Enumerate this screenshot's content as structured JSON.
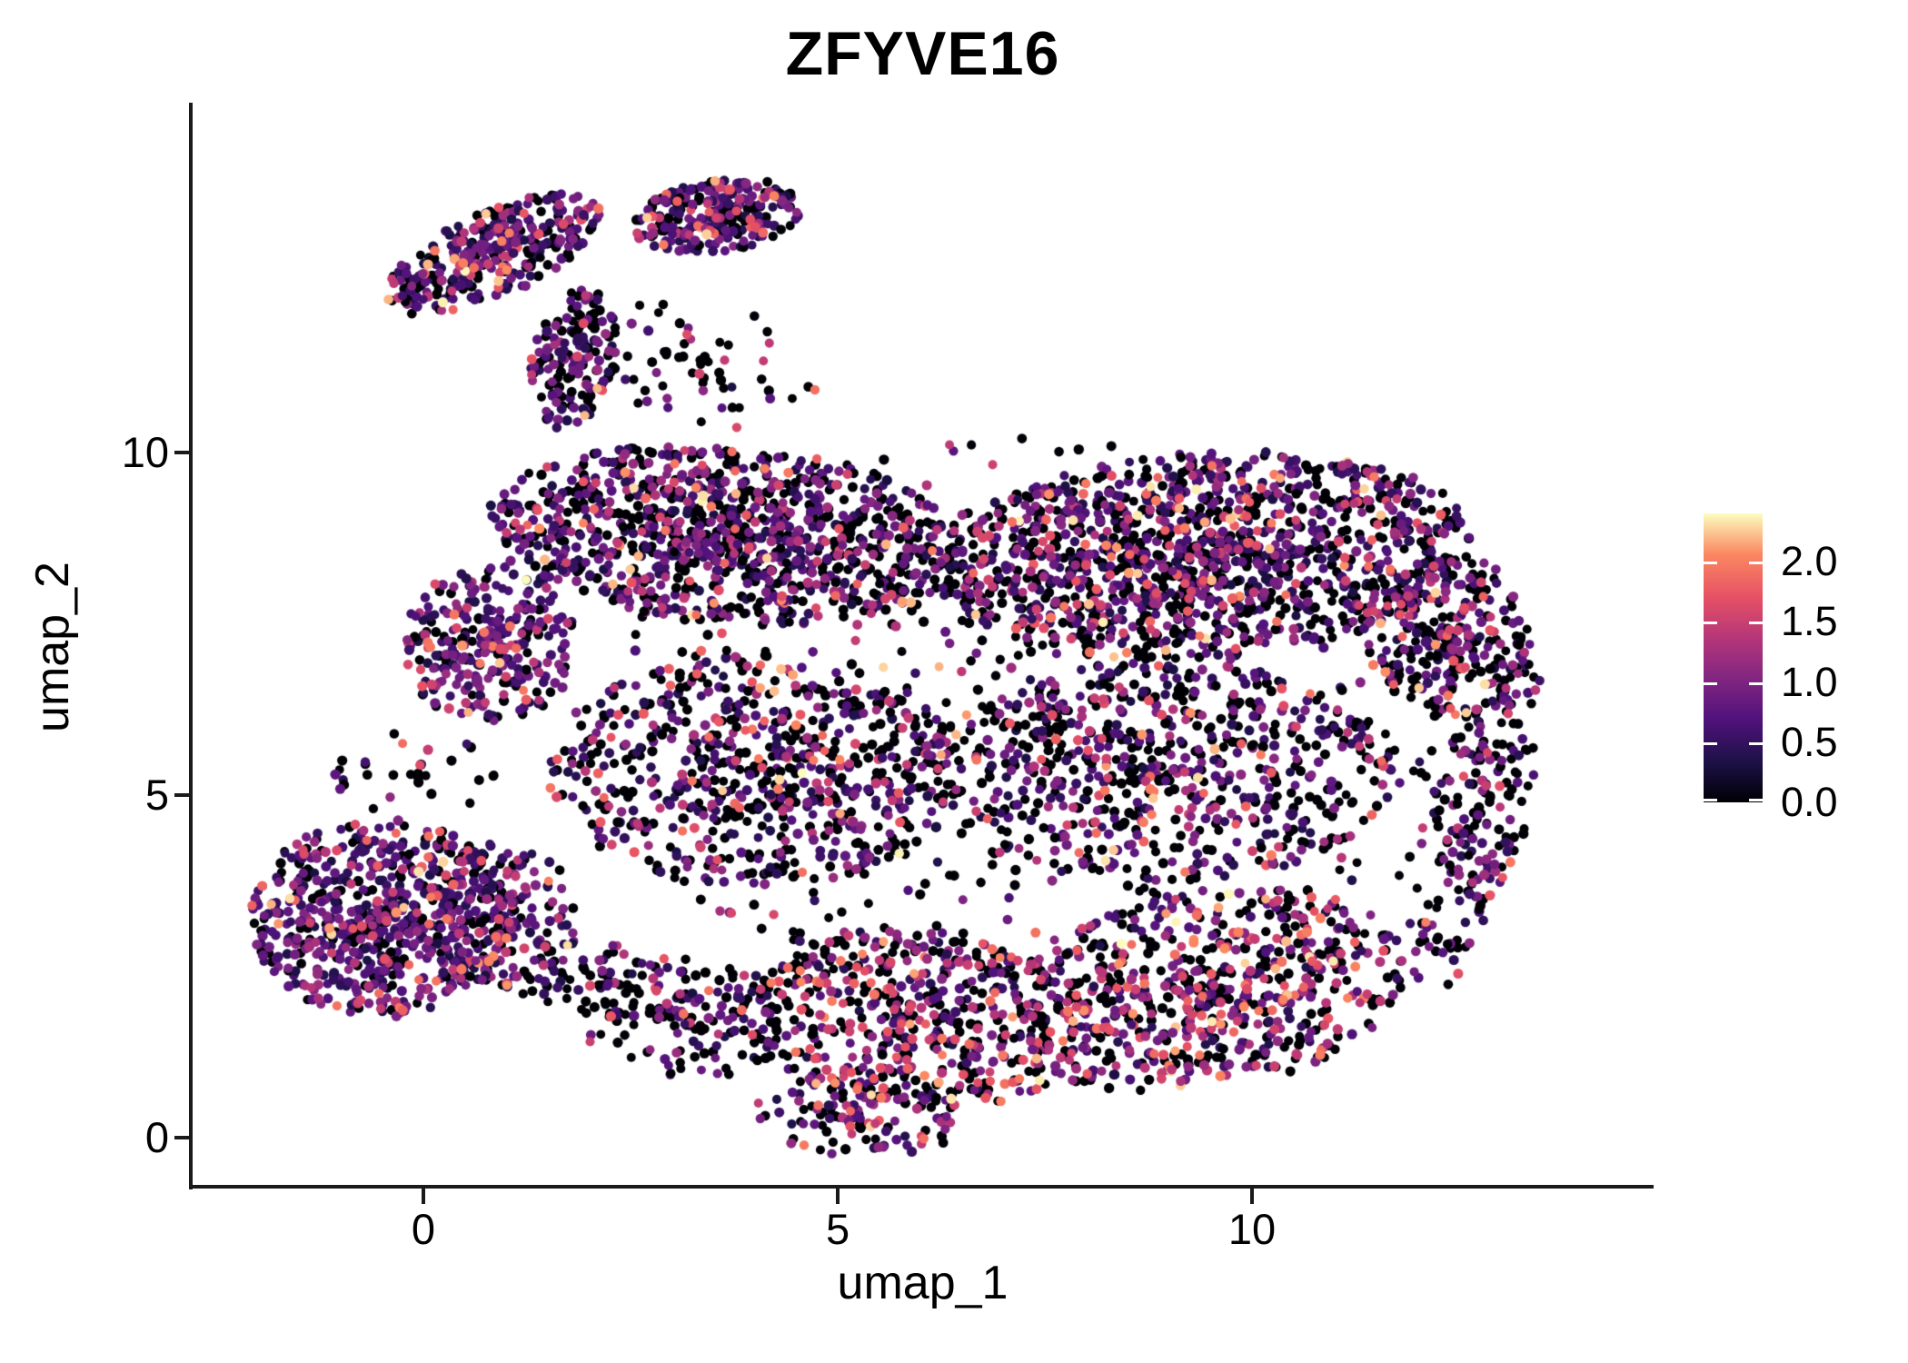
{
  "title": "ZFYVE16",
  "chart_data": {
    "type": "scatter",
    "title": "ZFYVE16",
    "xlabel": "umap_1",
    "ylabel": "umap_2",
    "xlim": [
      -2.785,
      14.835
    ],
    "ylim": [
      -0.703,
      15.08
    ],
    "x_ticks": [
      {
        "value": 0,
        "label": "0"
      },
      {
        "value": 5,
        "label": "5"
      },
      {
        "value": 10,
        "label": "10"
      }
    ],
    "y_ticks": [
      {
        "value": 0,
        "label": "0"
      },
      {
        "value": 5,
        "label": "5"
      },
      {
        "value": 10,
        "label": "10"
      }
    ],
    "grid": false,
    "legend_position": "right",
    "colormap_name": "magma",
    "colormap_stops": [
      [
        0.0,
        "#000004"
      ],
      [
        0.14,
        "#1d1147"
      ],
      [
        0.29,
        "#51127c"
      ],
      [
        0.43,
        "#822681"
      ],
      [
        0.57,
        "#b63679"
      ],
      [
        0.71,
        "#e65164"
      ],
      [
        0.86,
        "#fb8861"
      ],
      [
        1.0,
        "#fcfdbf"
      ]
    ],
    "color_domain": [
      0,
      2.4
    ],
    "legend_ticks": [
      {
        "value": 2.0,
        "label": "2.0"
      },
      {
        "value": 1.5,
        "label": "1.5"
      },
      {
        "value": 1.0,
        "label": "1.0"
      },
      {
        "value": 0.5,
        "label": "0.5"
      },
      {
        "value": 0.0,
        "label": "0.0"
      }
    ],
    "point_radius_px": 5.2,
    "seed": 42,
    "expression_bins": [
      [
        0.0,
        0.02
      ],
      [
        0.3,
        0.7
      ],
      [
        0.7,
        1.1
      ],
      [
        1.1,
        1.6
      ],
      [
        1.6,
        2.0
      ],
      [
        2.0,
        2.4
      ]
    ],
    "expression_mixes": {
      "default": [
        0.44,
        0.22,
        0.17,
        0.1,
        0.05,
        0.02
      ],
      "upper": [
        0.4,
        0.25,
        0.19,
        0.1,
        0.04,
        0.02
      ],
      "arm": [
        0.3,
        0.3,
        0.22,
        0.12,
        0.04,
        0.02
      ],
      "armdark": [
        0.42,
        0.26,
        0.18,
        0.09,
        0.04,
        0.01
      ],
      "blc": [
        0.22,
        0.33,
        0.26,
        0.12,
        0.05,
        0.02
      ],
      "lobe": [
        0.2,
        0.32,
        0.28,
        0.14,
        0.04,
        0.02
      ],
      "bottom": [
        0.38,
        0.14,
        0.16,
        0.18,
        0.1,
        0.04
      ],
      "sparse": [
        0.6,
        0.18,
        0.12,
        0.06,
        0.03,
        0.01
      ],
      "dark": [
        0.52,
        0.18,
        0.14,
        0.09,
        0.05,
        0.02
      ],
      "botdark": [
        0.5,
        0.15,
        0.13,
        0.12,
        0.07,
        0.03
      ]
    },
    "clusters": [
      {
        "name": "arm-a",
        "center": [
          0.85,
          12.9
        ],
        "spread": [
          1.45,
          0.6
        ],
        "rot": 30,
        "n": 330,
        "mix": "arm"
      },
      {
        "name": "arm-b",
        "center": [
          3.55,
          13.45
        ],
        "spread": [
          1.05,
          0.52
        ],
        "rot": 10,
        "n": 250,
        "mix": "arm"
      },
      {
        "name": "arm-hook",
        "center": [
          1.8,
          11.35
        ],
        "spread": [
          0.5,
          1.05
        ],
        "rot": -10,
        "n": 150,
        "mix": "armdark"
      },
      {
        "name": "arm-tail",
        "center": [
          3.4,
          11.3
        ],
        "spread": [
          1.4,
          0.9
        ],
        "rot": -20,
        "n": 60,
        "mix": "sparse"
      },
      {
        "name": "bottom-left-main",
        "center": [
          -0.5,
          3.2
        ],
        "spread": [
          1.6,
          1.45
        ],
        "rot": 0,
        "n": 680,
        "mix": "blc"
      },
      {
        "name": "bottom-left-east",
        "center": [
          1.05,
          3.2
        ],
        "spread": [
          0.8,
          1.15
        ],
        "rot": 0,
        "n": 150,
        "mix": "blc"
      },
      {
        "name": "bottom-left-bridge",
        "center": [
          2.1,
          2.3
        ],
        "spread": [
          0.9,
          0.6
        ],
        "rot": 0,
        "n": 60,
        "mix": "sparse"
      },
      {
        "name": "bottom-left-north",
        "center": [
          -0.2,
          5.3
        ],
        "spread": [
          1.2,
          0.6
        ],
        "rot": 0,
        "n": 30,
        "mix": "sparse"
      },
      {
        "name": "upper-left-band",
        "center": [
          3.66,
          8.8
        ],
        "spread": [
          2.9,
          1.3
        ],
        "rot": -5,
        "n": 1050,
        "mix": "upper"
      },
      {
        "name": "upper-right-band",
        "center": [
          9.45,
          8.5
        ],
        "spread": [
          3.3,
          1.5
        ],
        "rot": 5,
        "n": 1300,
        "mix": "upper"
      },
      {
        "name": "left-lobe",
        "center": [
          0.8,
          7.2
        ],
        "spread": [
          1.05,
          1.15
        ],
        "rot": 0,
        "n": 300,
        "mix": "lobe"
      },
      {
        "name": "mid-left",
        "center": [
          4.0,
          5.35
        ],
        "spread": [
          2.5,
          1.7
        ],
        "rot": 0,
        "n": 650,
        "mix": "default"
      },
      {
        "name": "mid-right",
        "center": [
          8.95,
          5.35
        ],
        "spread": [
          2.85,
          1.6
        ],
        "rot": 0,
        "n": 620,
        "mix": "default"
      },
      {
        "name": "bottom-center",
        "center": [
          5.85,
          1.75
        ],
        "spread": [
          2.2,
          1.3
        ],
        "rot": -8,
        "n": 520,
        "mix": "bottom"
      },
      {
        "name": "bottom-right",
        "center": [
          9.45,
          2.15
        ],
        "spread": [
          2.45,
          1.45
        ],
        "rot": 12,
        "n": 650,
        "mix": "bottom"
      },
      {
        "name": "right-edge",
        "center": [
          12.7,
          4.6
        ],
        "spread": [
          0.6,
          2.6
        ],
        "rot": -12,
        "n": 220,
        "mix": "dark"
      },
      {
        "name": "right-wedge",
        "center": [
          12.4,
          7.3
        ],
        "spread": [
          1.0,
          1.2
        ],
        "rot": 0,
        "n": 260,
        "mix": "default"
      },
      {
        "name": "fill-scatter",
        "center": [
          7.3,
          6.0
        ],
        "spread": [
          5.2,
          4.3
        ],
        "rot": 0,
        "n": 480,
        "mix": "sparse"
      },
      {
        "name": "bottom-left-tail",
        "center": [
          3.2,
          1.75
        ],
        "spread": [
          1.3,
          0.9
        ],
        "rot": 0,
        "n": 140,
        "mix": "sparse"
      },
      {
        "name": "bottom-tip",
        "center": [
          5.3,
          0.35
        ],
        "spread": [
          1.3,
          0.65
        ],
        "rot": 0,
        "n": 120,
        "mix": "botdark"
      }
    ]
  }
}
